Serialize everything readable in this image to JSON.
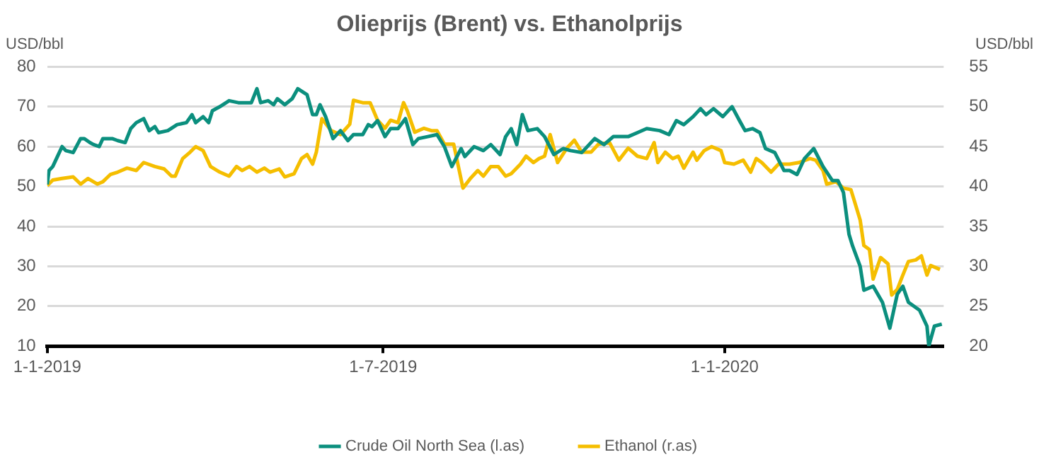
{
  "chart_data": {
    "type": "line",
    "title": "Olieprijs (Brent) vs. Ethanolprijs",
    "ylabel": "USD/bbl",
    "y2label": "USD/bbl",
    "xlim": [
      "2019-01-01",
      "2020-04-28"
    ],
    "xticks": [
      {
        "value": "2019-01-01",
        "label": "1-1-2019"
      },
      {
        "value": "2019-07-01",
        "label": "1-7-2019"
      },
      {
        "value": "2020-01-01",
        "label": "1-1-2020"
      }
    ],
    "ylim": [
      10,
      80
    ],
    "yticks": [
      10,
      20,
      30,
      40,
      50,
      60,
      70,
      80
    ],
    "y2lim": [
      20,
      55
    ],
    "y2ticks": [
      20,
      25,
      30,
      35,
      40,
      45,
      50,
      55
    ],
    "grid": "y",
    "legend": "bottom",
    "marker": "none",
    "line_style": "solid",
    "series": [
      {
        "name": "Crude Oil North Sea (l.as)",
        "color": "#0b8f7e",
        "x": [
          "2019-01-01",
          "2019-01-02",
          "2019-01-04",
          "2019-01-06",
          "2019-01-09",
          "2019-01-11",
          "2019-01-15",
          "2019-01-19",
          "2019-01-21",
          "2019-01-24",
          "2019-01-26",
          "2019-01-29",
          "2019-01-31",
          "2019-02-05",
          "2019-02-08",
          "2019-02-12",
          "2019-02-15",
          "2019-02-18",
          "2019-02-22",
          "2019-02-25",
          "2019-02-28",
          "2019-03-02",
          "2019-03-07",
          "2019-03-12",
          "2019-03-17",
          "2019-03-20",
          "2019-03-22",
          "2019-03-26",
          "2019-03-29",
          "2019-03-31",
          "2019-04-04",
          "2019-04-09",
          "2019-04-14",
          "2019-04-21",
          "2019-04-24",
          "2019-04-26",
          "2019-04-30",
          "2019-05-03",
          "2019-05-05",
          "2019-05-09",
          "2019-05-13",
          "2019-05-16",
          "2019-05-21",
          "2019-05-24",
          "2019-05-26",
          "2019-05-28",
          "2019-05-31",
          "2019-06-04",
          "2019-06-08",
          "2019-06-12",
          "2019-06-15",
          "2019-06-20",
          "2019-06-23",
          "2019-06-25",
          "2019-06-28",
          "2019-07-02",
          "2019-07-05",
          "2019-07-09",
          "2019-07-13",
          "2019-07-17",
          "2019-07-20",
          "2019-07-25",
          "2019-07-30",
          "2019-08-03",
          "2019-08-07",
          "2019-08-12",
          "2019-08-14",
          "2019-08-19",
          "2019-08-24",
          "2019-08-28",
          "2019-09-02",
          "2019-09-05",
          "2019-09-08",
          "2019-09-11",
          "2019-09-14",
          "2019-09-17",
          "2019-09-22",
          "2019-09-26",
          "2019-10-01",
          "2019-10-06",
          "2019-10-10",
          "2019-10-16",
          "2019-10-23",
          "2019-10-28",
          "2019-11-02",
          "2019-11-10",
          "2019-11-15",
          "2019-11-20",
          "2019-11-27",
          "2019-12-02",
          "2019-12-06",
          "2019-12-10",
          "2019-12-15",
          "2019-12-19",
          "2019-12-22",
          "2019-12-26",
          "2019-12-31",
          "2020-01-05",
          "2020-01-09",
          "2020-01-12",
          "2020-01-16",
          "2020-01-20",
          "2020-01-23",
          "2020-01-28",
          "2020-02-02",
          "2020-02-05",
          "2020-02-09",
          "2020-02-13",
          "2020-02-18",
          "2020-02-23",
          "2020-02-28",
          "2020-03-02",
          "2020-03-05",
          "2020-03-08",
          "2020-03-10",
          "2020-03-14",
          "2020-03-16",
          "2020-03-21",
          "2020-03-26",
          "2020-03-30",
          "2020-04-03",
          "2020-04-06",
          "2020-04-09",
          "2020-04-15",
          "2020-04-19",
          "2020-04-20",
          "2020-04-23",
          "2020-04-27"
        ],
        "values": [
          50.5,
          54,
          55,
          57,
          60,
          59,
          58.5,
          62,
          62,
          61,
          60.5,
          60,
          62,
          62,
          61.5,
          61,
          64.5,
          66,
          67,
          64,
          65,
          63.5,
          64,
          65.5,
          66,
          68,
          66,
          67.5,
          66,
          69,
          70,
          71.5,
          71,
          71,
          74.5,
          71,
          71.5,
          70.5,
          72,
          70.5,
          72,
          74.5,
          73,
          68,
          68,
          70.5,
          67.5,
          62,
          64,
          61.5,
          63,
          63,
          65.5,
          65,
          66.5,
          62.5,
          64.5,
          64.5,
          67,
          60.5,
          62,
          62.5,
          63,
          60,
          55,
          59.5,
          57.5,
          60,
          59,
          60.5,
          58,
          62.5,
          64.5,
          60.5,
          68,
          64,
          64.5,
          62.5,
          58,
          59.5,
          59,
          58.5,
          62,
          60.5,
          62.5,
          62.5,
          63.5,
          64.5,
          64,
          63,
          66.5,
          65.5,
          67.5,
          69.5,
          68,
          69.5,
          67.5,
          70,
          66.5,
          64,
          64.5,
          63.5,
          59.5,
          58.5,
          54,
          54,
          53,
          57,
          59.5,
          55,
          51.5,
          51.5,
          48.5,
          38,
          35,
          30,
          24,
          25,
          21,
          14.5,
          23,
          25,
          21,
          19,
          15,
          10,
          15,
          15.5
        ]
      },
      {
        "name": "Ethanol (r.as)",
        "color": "#f5be00",
        "axis": "y2",
        "x": [
          "2019-01-01",
          "2019-01-04",
          "2019-01-09",
          "2019-01-15",
          "2019-01-19",
          "2019-01-23",
          "2019-01-28",
          "2019-01-31",
          "2019-02-04",
          "2019-02-08",
          "2019-02-13",
          "2019-02-18",
          "2019-02-22",
          "2019-02-28",
          "2019-03-05",
          "2019-03-09",
          "2019-03-11",
          "2019-03-15",
          "2019-03-19",
          "2019-03-22",
          "2019-03-26",
          "2019-03-30",
          "2019-04-04",
          "2019-04-09",
          "2019-04-13",
          "2019-04-16",
          "2019-04-20",
          "2019-04-24",
          "2019-04-28",
          "2019-05-01",
          "2019-05-06",
          "2019-05-09",
          "2019-05-14",
          "2019-05-18",
          "2019-05-21",
          "2019-05-24",
          "2019-05-26",
          "2019-05-29",
          "2019-06-03",
          "2019-06-08",
          "2019-06-13",
          "2019-06-15",
          "2019-06-20",
          "2019-06-24",
          "2019-06-28",
          "2019-07-02",
          "2019-07-05",
          "2019-07-09",
          "2019-07-12",
          "2019-07-14",
          "2019-07-18",
          "2019-07-23",
          "2019-07-27",
          "2019-07-30",
          "2019-08-03",
          "2019-08-08",
          "2019-08-13",
          "2019-08-17",
          "2019-08-21",
          "2019-08-24",
          "2019-08-28",
          "2019-09-01",
          "2019-09-05",
          "2019-09-08",
          "2019-09-13",
          "2019-09-16",
          "2019-09-20",
          "2019-09-23",
          "2019-09-26",
          "2019-09-29",
          "2019-10-03",
          "2019-10-08",
          "2019-10-12",
          "2019-10-16",
          "2019-10-21",
          "2019-10-25",
          "2019-10-31",
          "2019-11-05",
          "2019-11-10",
          "2019-11-15",
          "2019-11-20",
          "2019-11-24",
          "2019-11-26",
          "2019-11-30",
          "2019-12-04",
          "2019-12-07",
          "2019-12-10",
          "2019-12-15",
          "2019-12-17",
          "2019-12-21",
          "2019-12-25",
          "2019-12-30",
          "2020-01-01",
          "2020-01-06",
          "2020-01-11",
          "2020-01-15",
          "2020-01-18",
          "2020-01-21",
          "2020-01-26",
          "2020-01-30",
          "2020-02-05",
          "2020-02-10",
          "2020-02-16",
          "2020-02-19",
          "2020-02-23",
          "2020-02-25",
          "2020-03-01",
          "2020-03-05",
          "2020-03-09",
          "2020-03-11",
          "2020-03-14",
          "2020-03-16",
          "2020-03-19",
          "2020-03-21",
          "2020-03-25",
          "2020-03-29",
          "2020-03-31",
          "2020-04-03",
          "2020-04-06",
          "2020-04-09",
          "2020-04-13",
          "2020-04-16",
          "2020-04-19",
          "2020-04-21",
          "2020-04-26"
        ],
        "values": [
          40.1,
          40.8,
          41,
          41.2,
          40.3,
          41,
          40.3,
          40.6,
          41.5,
          41.8,
          42.3,
          42,
          43,
          42.5,
          42.2,
          41.3,
          41.3,
          43.5,
          44.3,
          45,
          44.5,
          42.5,
          41.8,
          41.3,
          42.5,
          42,
          42.5,
          41.8,
          42.3,
          41.8,
          42.2,
          41.2,
          41.6,
          43.5,
          44,
          42.8,
          44.3,
          48.5,
          47,
          46.5,
          47.8,
          50.8,
          50.5,
          50.5,
          48.3,
          47.3,
          48.3,
          48,
          50.5,
          49.5,
          46.8,
          47.3,
          47,
          47,
          45.3,
          45.3,
          39.8,
          41,
          42,
          41.3,
          42.5,
          42.5,
          41.3,
          41.6,
          42.8,
          43.8,
          43,
          43.5,
          43.8,
          46.5,
          43,
          44.8,
          45.8,
          44.3,
          44.3,
          45.3,
          45.5,
          43.3,
          44.8,
          43.8,
          43.5,
          45.5,
          43,
          44.3,
          43.5,
          43.8,
          42.3,
          44.3,
          43.3,
          44.5,
          45,
          44.5,
          43,
          42.8,
          43.3,
          41.8,
          43.5,
          43,
          41.8,
          42.8,
          42.8,
          43,
          43.5,
          43.3,
          42,
          40.3,
          40.6,
          39.8,
          39.6,
          38.1,
          35.8,
          32.6,
          32.1,
          28.4,
          31.1,
          30.3,
          26.4,
          27.1,
          28.9,
          30.6,
          30.8,
          31.3,
          28.9,
          30.1,
          29.6
        ]
      }
    ]
  }
}
